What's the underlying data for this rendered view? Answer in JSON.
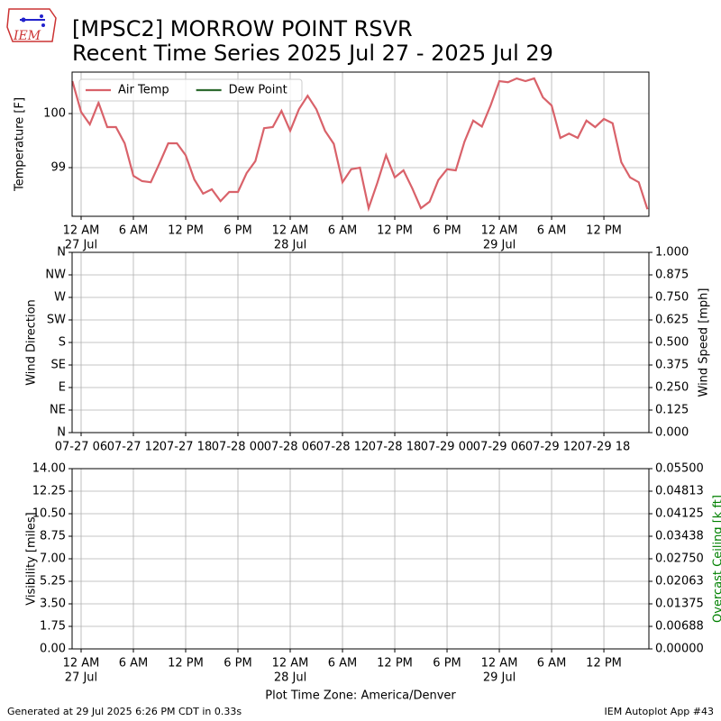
{
  "header": {
    "logo_text": "IEM",
    "title_line1": "[MPSC2] MORROW POINT RSVR",
    "title_line2": "Recent Time Series 2025 Jul 27 - 2025 Jul 29"
  },
  "footer": {
    "left": "Generated at 29 Jul 2025 6:26 PM CDT in 0.33s",
    "right": "IEM Autoplot App #43"
  },
  "chart_data": [
    {
      "type": "line",
      "ylabel": "Temperature [F]",
      "grid": true,
      "legend": "upper left",
      "x": [
        "2025-07-26 23:00",
        "2025-07-27 00:00",
        "2025-07-27 01:00",
        "2025-07-27 02:00",
        "2025-07-27 03:00",
        "2025-07-27 04:00",
        "2025-07-27 05:00",
        "2025-07-27 06:00",
        "2025-07-27 07:00",
        "2025-07-27 08:00",
        "2025-07-27 09:00",
        "2025-07-27 10:00",
        "2025-07-27 11:00",
        "2025-07-27 12:00",
        "2025-07-27 13:00",
        "2025-07-27 14:00",
        "2025-07-27 15:00",
        "2025-07-27 16:00",
        "2025-07-27 17:00",
        "2025-07-27 18:00",
        "2025-07-27 19:00",
        "2025-07-27 20:00",
        "2025-07-27 21:00",
        "2025-07-27 22:00",
        "2025-07-27 23:00",
        "2025-07-28 00:00",
        "2025-07-28 01:00",
        "2025-07-28 02:00",
        "2025-07-28 03:00",
        "2025-07-28 04:00",
        "2025-07-28 05:00",
        "2025-07-28 06:00",
        "2025-07-28 07:00",
        "2025-07-28 08:00",
        "2025-07-28 09:00",
        "2025-07-28 10:00",
        "2025-07-28 11:00",
        "2025-07-28 12:00",
        "2025-07-28 13:00",
        "2025-07-28 14:00",
        "2025-07-28 15:00",
        "2025-07-28 16:00",
        "2025-07-28 17:00",
        "2025-07-28 18:00",
        "2025-07-28 19:00",
        "2025-07-28 20:00",
        "2025-07-28 21:00",
        "2025-07-28 22:00",
        "2025-07-28 23:00",
        "2025-07-29 00:00",
        "2025-07-29 01:00",
        "2025-07-29 02:00",
        "2025-07-29 03:00",
        "2025-07-29 04:00",
        "2025-07-29 05:00",
        "2025-07-29 06:00",
        "2025-07-29 07:00",
        "2025-07-29 08:00",
        "2025-07-29 09:00",
        "2025-07-29 10:00",
        "2025-07-29 11:00",
        "2025-07-29 12:00",
        "2025-07-29 13:00",
        "2025-07-29 14:00",
        "2025-07-29 15:00",
        "2025-07-29 16:00",
        "2025-07-29 17:00"
      ],
      "series": [
        {
          "name": "Air Temp",
          "color": "#d9626a",
          "values": [
            100.6,
            100.03,
            99.8,
            100.2,
            99.75,
            99.75,
            99.45,
            98.85,
            98.75,
            98.73,
            99.08,
            99.45,
            99.45,
            99.23,
            98.78,
            98.52,
            98.6,
            98.38,
            98.55,
            98.55,
            98.9,
            99.12,
            99.73,
            99.75,
            100.05,
            99.68,
            100.08,
            100.33,
            100.08,
            99.68,
            99.44,
            98.73,
            98.97,
            99.0,
            98.25,
            98.72,
            99.23,
            98.82,
            98.95,
            98.62,
            98.25,
            98.37,
            98.77,
            98.97,
            98.95,
            99.48,
            99.87,
            99.76,
            100.15,
            100.6,
            100.58,
            100.65,
            100.6,
            100.65,
            100.3,
            100.15,
            99.55,
            99.63,
            99.55,
            99.87,
            99.75,
            99.9,
            99.82,
            99.1,
            98.82,
            98.73,
            98.23
          ]
        },
        {
          "name": "Dew Point",
          "color": "#2e6b30",
          "values": [
            null,
            null,
            null,
            null,
            null,
            null,
            null,
            null,
            null,
            null,
            null,
            null,
            null,
            null,
            null,
            null,
            null,
            null,
            null,
            null,
            null,
            null,
            null,
            null,
            null,
            null,
            null,
            null,
            null,
            null,
            null,
            null,
            null,
            null,
            null,
            null,
            null,
            null,
            null,
            null,
            null,
            null,
            null,
            null,
            null,
            null,
            null,
            null,
            null,
            null,
            null,
            null,
            null,
            null,
            null,
            null,
            null,
            null,
            null,
            null,
            null,
            null,
            null,
            null,
            null,
            null,
            null
          ]
        }
      ],
      "xlim": [
        "2025-07-26 22:58",
        "2025-07-29 17:10"
      ],
      "ylim": [
        98.1,
        100.767
      ],
      "yticks": [
        99,
        100
      ],
      "xticks": [
        {
          "value": "2025-07-27 00:00",
          "label": "12 AM"
        },
        {
          "value": "2025-07-27 06:00",
          "label": "6 AM"
        },
        {
          "value": "2025-07-27 12:00",
          "label": "12 PM"
        },
        {
          "value": "2025-07-27 18:00",
          "label": "6 PM"
        },
        {
          "value": "2025-07-28 00:00",
          "label": "12 AM"
        },
        {
          "value": "2025-07-28 06:00",
          "label": "6 AM"
        },
        {
          "value": "2025-07-28 12:00",
          "label": "12 PM"
        },
        {
          "value": "2025-07-28 18:00",
          "label": "6 PM"
        },
        {
          "value": "2025-07-29 00:00",
          "label": "12 AM"
        },
        {
          "value": "2025-07-29 06:00",
          "label": "6 AM"
        },
        {
          "value": "2025-07-29 12:00",
          "label": "12 PM"
        }
      ],
      "xtick_dates": [
        {
          "value": "2025-07-27 00:00",
          "label": "27 Jul"
        },
        {
          "value": "2025-07-28 00:00",
          "label": "28 Jul"
        },
        {
          "value": "2025-07-29 00:00",
          "label": "29 Jul"
        }
      ]
    },
    {
      "type": "line",
      "ylabel": "Wind Direction",
      "y2label": "Wind Speed [mph]",
      "grid": true,
      "xlim": [
        "2025-07-26 22:58",
        "2025-07-29 17:10"
      ],
      "ylim": [
        0,
        360
      ],
      "yticks": [
        {
          "value": 0,
          "label": "N"
        },
        {
          "value": 45,
          "label": "NE"
        },
        {
          "value": 90,
          "label": "E"
        },
        {
          "value": 135,
          "label": "SE"
        },
        {
          "value": 180,
          "label": "S"
        },
        {
          "value": 225,
          "label": "SW"
        },
        {
          "value": 270,
          "label": "W"
        },
        {
          "value": 315,
          "label": "NW"
        },
        {
          "value": 360,
          "label": "N"
        }
      ],
      "y2lim": [
        0,
        1
      ],
      "y2ticks": [
        {
          "value": 0,
          "label": "0.000"
        },
        {
          "value": 0.125,
          "label": "0.125"
        },
        {
          "value": 0.25,
          "label": "0.250"
        },
        {
          "value": 0.375,
          "label": "0.375"
        },
        {
          "value": 0.5,
          "label": "0.500"
        },
        {
          "value": 0.625,
          "label": "0.625"
        },
        {
          "value": 0.75,
          "label": "0.750"
        },
        {
          "value": 0.875,
          "label": "0.875"
        },
        {
          "value": 1,
          "label": "1.000"
        }
      ],
      "xticks": [
        {
          "value": "2025-07-27 00:00",
          "label": "07-27 06"
        },
        {
          "value": "2025-07-27 06:00",
          "label": "07-27 12"
        },
        {
          "value": "2025-07-27 12:00",
          "label": "07-27 18"
        },
        {
          "value": "2025-07-27 18:00",
          "label": "07-28 00"
        },
        {
          "value": "2025-07-28 00:00",
          "label": "07-28 06"
        },
        {
          "value": "2025-07-28 06:00",
          "label": "07-28 12"
        },
        {
          "value": "2025-07-28 12:00",
          "label": "07-28 18"
        },
        {
          "value": "2025-07-28 18:00",
          "label": "07-29 00"
        },
        {
          "value": "2025-07-29 00:00",
          "label": "07-29 06"
        },
        {
          "value": "2025-07-29 06:00",
          "label": "07-29 12"
        },
        {
          "value": "2025-07-29 12:00",
          "label": "07-29 18"
        }
      ]
    },
    {
      "type": "line",
      "ylabel": "Visibility [miles]",
      "y2label": "Overcast Ceiling [k ft]",
      "y2label_color": "#008000",
      "xlabel": "Plot Time Zone: America/Denver",
      "grid": true,
      "xlim": [
        "2025-07-26 22:58",
        "2025-07-29 17:10"
      ],
      "ylim": [
        0,
        14
      ],
      "yticks": [
        {
          "value": 0,
          "label": "0.00"
        },
        {
          "value": 1.75,
          "label": "1.75"
        },
        {
          "value": 3.5,
          "label": "3.50"
        },
        {
          "value": 5.25,
          "label": "5.25"
        },
        {
          "value": 7,
          "label": "7.00"
        },
        {
          "value": 8.75,
          "label": "8.75"
        },
        {
          "value": 10.5,
          "label": "10.50"
        },
        {
          "value": 12.25,
          "label": "12.25"
        },
        {
          "value": 14,
          "label": "14.00"
        }
      ],
      "y2lim": [
        0,
        0.055
      ],
      "y2ticks": [
        {
          "value": 0,
          "label": "0.00000"
        },
        {
          "value": 0.006875,
          "label": "0.00688"
        },
        {
          "value": 0.01375,
          "label": "0.01375"
        },
        {
          "value": 0.020625,
          "label": "0.02063"
        },
        {
          "value": 0.0275,
          "label": "0.02750"
        },
        {
          "value": 0.034375,
          "label": "0.03438"
        },
        {
          "value": 0.04125,
          "label": "0.04125"
        },
        {
          "value": 0.048125,
          "label": "0.04813"
        },
        {
          "value": 0.055,
          "label": "0.05500"
        }
      ],
      "xticks": [
        {
          "value": "2025-07-27 00:00",
          "label": "12 AM"
        },
        {
          "value": "2025-07-27 06:00",
          "label": "6 AM"
        },
        {
          "value": "2025-07-27 12:00",
          "label": "12 PM"
        },
        {
          "value": "2025-07-27 18:00",
          "label": "6 PM"
        },
        {
          "value": "2025-07-28 00:00",
          "label": "12 AM"
        },
        {
          "value": "2025-07-28 06:00",
          "label": "6 AM"
        },
        {
          "value": "2025-07-28 12:00",
          "label": "12 PM"
        },
        {
          "value": "2025-07-28 18:00",
          "label": "6 PM"
        },
        {
          "value": "2025-07-29 00:00",
          "label": "12 AM"
        },
        {
          "value": "2025-07-29 06:00",
          "label": "6 AM"
        },
        {
          "value": "2025-07-29 12:00",
          "label": "12 PM"
        }
      ],
      "xtick_dates": [
        {
          "value": "2025-07-27 00:00",
          "label": "27 Jul"
        },
        {
          "value": "2025-07-28 00:00",
          "label": "28 Jul"
        },
        {
          "value": "2025-07-29 00:00",
          "label": "29 Jul"
        }
      ]
    }
  ]
}
